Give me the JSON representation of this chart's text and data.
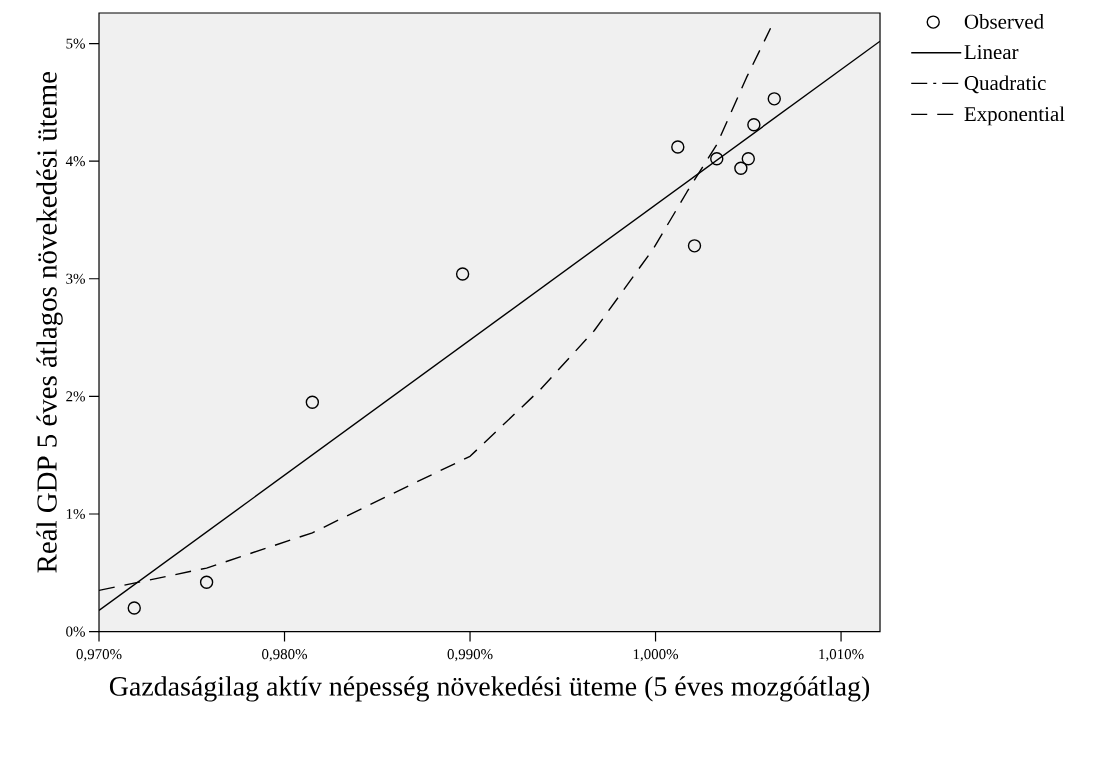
{
  "chart_data": {
    "type": "scatter",
    "xlabel": "Gazdaságilag aktív népesség növekedési üteme (5 éves mozgóátlag)",
    "ylabel": "Reál GDP 5 éves átlagos növekedési üteme",
    "xlim": [
      0.97,
      1.0121
    ],
    "ylim": [
      0,
      5.26
    ],
    "xticks": [
      {
        "value": 0.97,
        "label": "0,970%"
      },
      {
        "value": 0.98,
        "label": "0,980%"
      },
      {
        "value": 0.99,
        "label": "0,990%"
      },
      {
        "value": 1.0,
        "label": "1,000%"
      },
      {
        "value": 1.01,
        "label": "1,010%"
      }
    ],
    "yticks": [
      {
        "value": 0,
        "label": "0%"
      },
      {
        "value": 1,
        "label": "1%"
      },
      {
        "value": 2,
        "label": "2%"
      },
      {
        "value": 3,
        "label": "3%"
      },
      {
        "value": 4,
        "label": "4%"
      },
      {
        "value": 5,
        "label": "5%"
      }
    ],
    "grid": false,
    "legend": "top right",
    "series": [
      {
        "type": "scatter",
        "name": "Observed",
        "color": "#000000",
        "marker": "circle",
        "x": [
          0.9719,
          0.9758,
          0.9815,
          0.9896,
          1.0012,
          1.0021,
          1.0033,
          1.0046,
          1.005,
          1.0053,
          1.0064
        ],
        "values": [
          0.2,
          0.42,
          1.95,
          3.04,
          4.12,
          3.28,
          4.02,
          3.94,
          4.02,
          4.31,
          4.53
        ]
      },
      {
        "type": "line",
        "name": "Linear",
        "color": "#000000",
        "line_style": "solid",
        "x": [
          0.97,
          1.0121
        ],
        "values": [
          0.18,
          5.02
        ]
      },
      {
        "type": "line",
        "name": "Quadratic",
        "color": "#000000",
        "line_style": "dashdot"
      },
      {
        "type": "line",
        "name": "Exponential",
        "color": "#000000",
        "line_style": "dashed",
        "x": [
          0.97,
          0.9758,
          0.9815,
          0.9867,
          0.99,
          0.9938,
          0.9967,
          0.9999,
          1.0017,
          1.0033,
          1.0049,
          1.0062
        ],
        "values": [
          0.35,
          0.54,
          0.84,
          1.24,
          1.49,
          2.06,
          2.56,
          3.26,
          3.74,
          4.14,
          4.71,
          5.13
        ]
      }
    ]
  }
}
